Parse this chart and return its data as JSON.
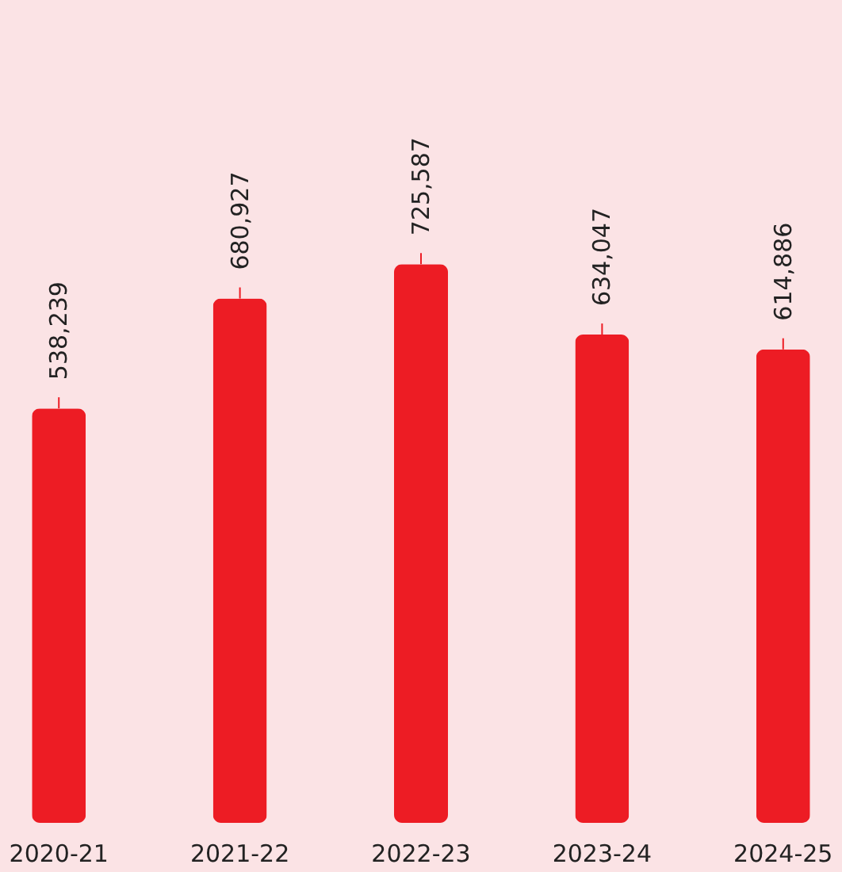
{
  "chart_data": {
    "type": "bar",
    "categories": [
      "2020-21",
      "2021-22",
      "2022-23",
      "2023-24",
      "2024-25"
    ],
    "values": [
      538239,
      680927,
      725587,
      634047,
      614886
    ],
    "value_labels": [
      "538,239",
      "680,927",
      "725,587",
      "634,047",
      "614,886"
    ],
    "color": "#ed1c24"
  }
}
